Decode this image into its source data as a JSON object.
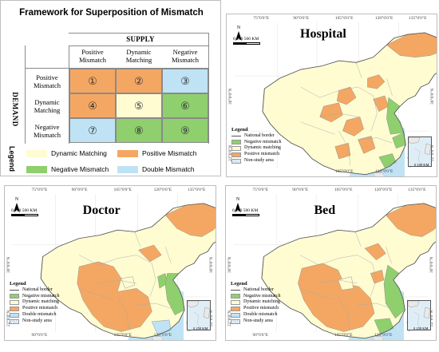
{
  "colors": {
    "dynamic_matching": "#fffcd2",
    "positive_mismatch": "#f4a763",
    "negative_mismatch": "#8fcf6e",
    "double_mismatch": "#bfe3f5",
    "sea": "#bfe3f5",
    "border_line": "#666666"
  },
  "framework": {
    "title": "Framework for Superposition of Mismatch",
    "supply_label": "SUPPLY",
    "demand_label": "DEMAND",
    "columns": [
      "Positive Mismatch",
      "Dynamic Matching",
      "Negative Mismatch"
    ],
    "rows": [
      "Positive Mismatch",
      "Dynamic Matching",
      "Negative Mismatch"
    ],
    "cells": [
      [
        {
          "label": "①",
          "type": "positive"
        },
        {
          "label": "②",
          "type": "positive"
        },
        {
          "label": "③",
          "type": "double"
        }
      ],
      [
        {
          "label": "④",
          "type": "positive"
        },
        {
          "label": "⑤",
          "type": "dynamic"
        },
        {
          "label": "⑥",
          "type": "negative"
        }
      ],
      [
        {
          "label": "⑦",
          "type": "double"
        },
        {
          "label": "⑧",
          "type": "negative"
        },
        {
          "label": "⑨",
          "type": "negative"
        }
      ]
    ],
    "legend_title": "Legend",
    "legend_items": [
      {
        "label": "Dynamic Matching",
        "type": "dynamic"
      },
      {
        "label": "Positive Mismatch",
        "type": "positive"
      },
      {
        "label": "Negative Mismatch",
        "type": "negative"
      },
      {
        "label": "Double Mismatch",
        "type": "double"
      }
    ]
  },
  "maps": {
    "hospital": {
      "title": "Hospital",
      "lon_top": [
        "75°0'0\"E",
        "90°0'0\"E",
        "105°0'0\"E",
        "120°0'0\"E",
        "135°0'0\"E"
      ],
      "lon_bottom": [
        "105°0'0\"E",
        "120°0'0\"E"
      ],
      "lat_left": [
        "36°0'0\"N",
        "22°0'0\"N"
      ],
      "lat_right": [
        "36°0'0\"N",
        "22°0'0\"N"
      ],
      "scale_label": "0  250  500 KM",
      "north": "N",
      "legend": {
        "title": "Legend",
        "items": [
          "National border",
          "Negative mismatch",
          "Dynamic matching",
          "Positive mismatch",
          "Non-study area"
        ]
      },
      "inset_scale": "0 100 KM"
    },
    "doctor": {
      "title": "Doctor",
      "lon_top": [
        "75°0'0\"E",
        "90°0'0\"E",
        "105°0'0\"E",
        "120°0'0\"E",
        "135°0'0\"E"
      ],
      "lon_bottom": [
        "90°0'0\"E",
        "105°0'0\"E",
        "120°0'0\"E"
      ],
      "lat_left": [
        "36°0'0\"N",
        "22°0'0\"N"
      ],
      "lat_right": [
        "36°0'0\"N",
        "22°0'0\"N"
      ],
      "scale_label": "0  250  500 KM",
      "north": "N",
      "legend": {
        "title": "Legend",
        "items": [
          "National border",
          "Negative mismatch",
          "Dynamic matching",
          "Positive mismatch",
          "Double mismatch",
          "Non-study area"
        ]
      },
      "inset_scale": "0 250 KM"
    },
    "bed": {
      "title": "Bed",
      "lon_top": [
        "75°0'0\"E",
        "90°0'0\"E",
        "105°0'0\"E",
        "120°0'0\"E",
        "135°0'0\"E"
      ],
      "lon_bottom": [
        "90°0'0\"E",
        "105°0'0\"E",
        "120°0'0\"E"
      ],
      "lat_left": [
        "36°0'0\"N",
        "22°0'0\"N"
      ],
      "lat_right": [
        "36°0'0\"N",
        "22°0'0\"N"
      ],
      "scale_label": "0  250  500 KM",
      "north": "N",
      "legend": {
        "title": "Legend",
        "items": [
          "National border",
          "Negative mismatch",
          "Dynamic matching",
          "Positive mismatch",
          "Double mismatch",
          "Non-study area"
        ]
      },
      "inset_scale": "0 250 KM"
    }
  }
}
